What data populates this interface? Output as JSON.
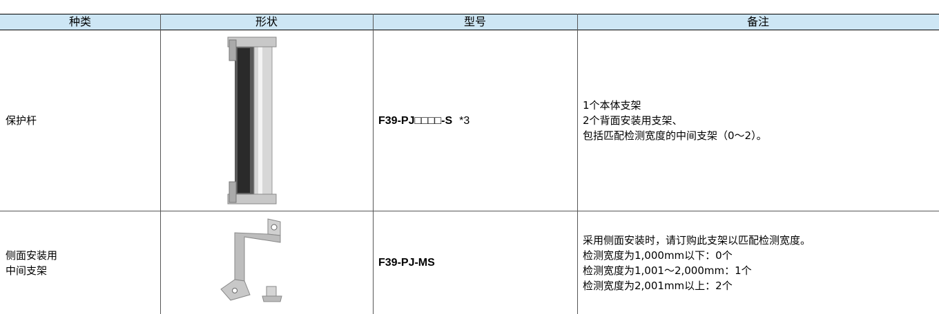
{
  "table": {
    "header": [
      "种类",
      "形状",
      "型号",
      "备注"
    ],
    "rows": [
      {
        "type": [
          "保护杆"
        ],
        "model": "F39-PJ□□□□-S",
        "model_note": "*3",
        "remarks": [
          "1个本体支架",
          "2个背面安装用支架、",
          "包括匹配检测宽度的中间支架（0～2）。"
        ]
      },
      {
        "type": [
          "侧面安装用",
          "中间支架"
        ],
        "model": "F39-PJ-MS",
        "remarks": [
          "采用侧面安装时，请订购此支架以匹配检测宽度。",
          "检测宽度为1,000mm以下：0个",
          "检测宽度为1,001～2,000mm：1个",
          "检测宽度为2,001mm以上：2个"
        ]
      }
    ]
  }
}
